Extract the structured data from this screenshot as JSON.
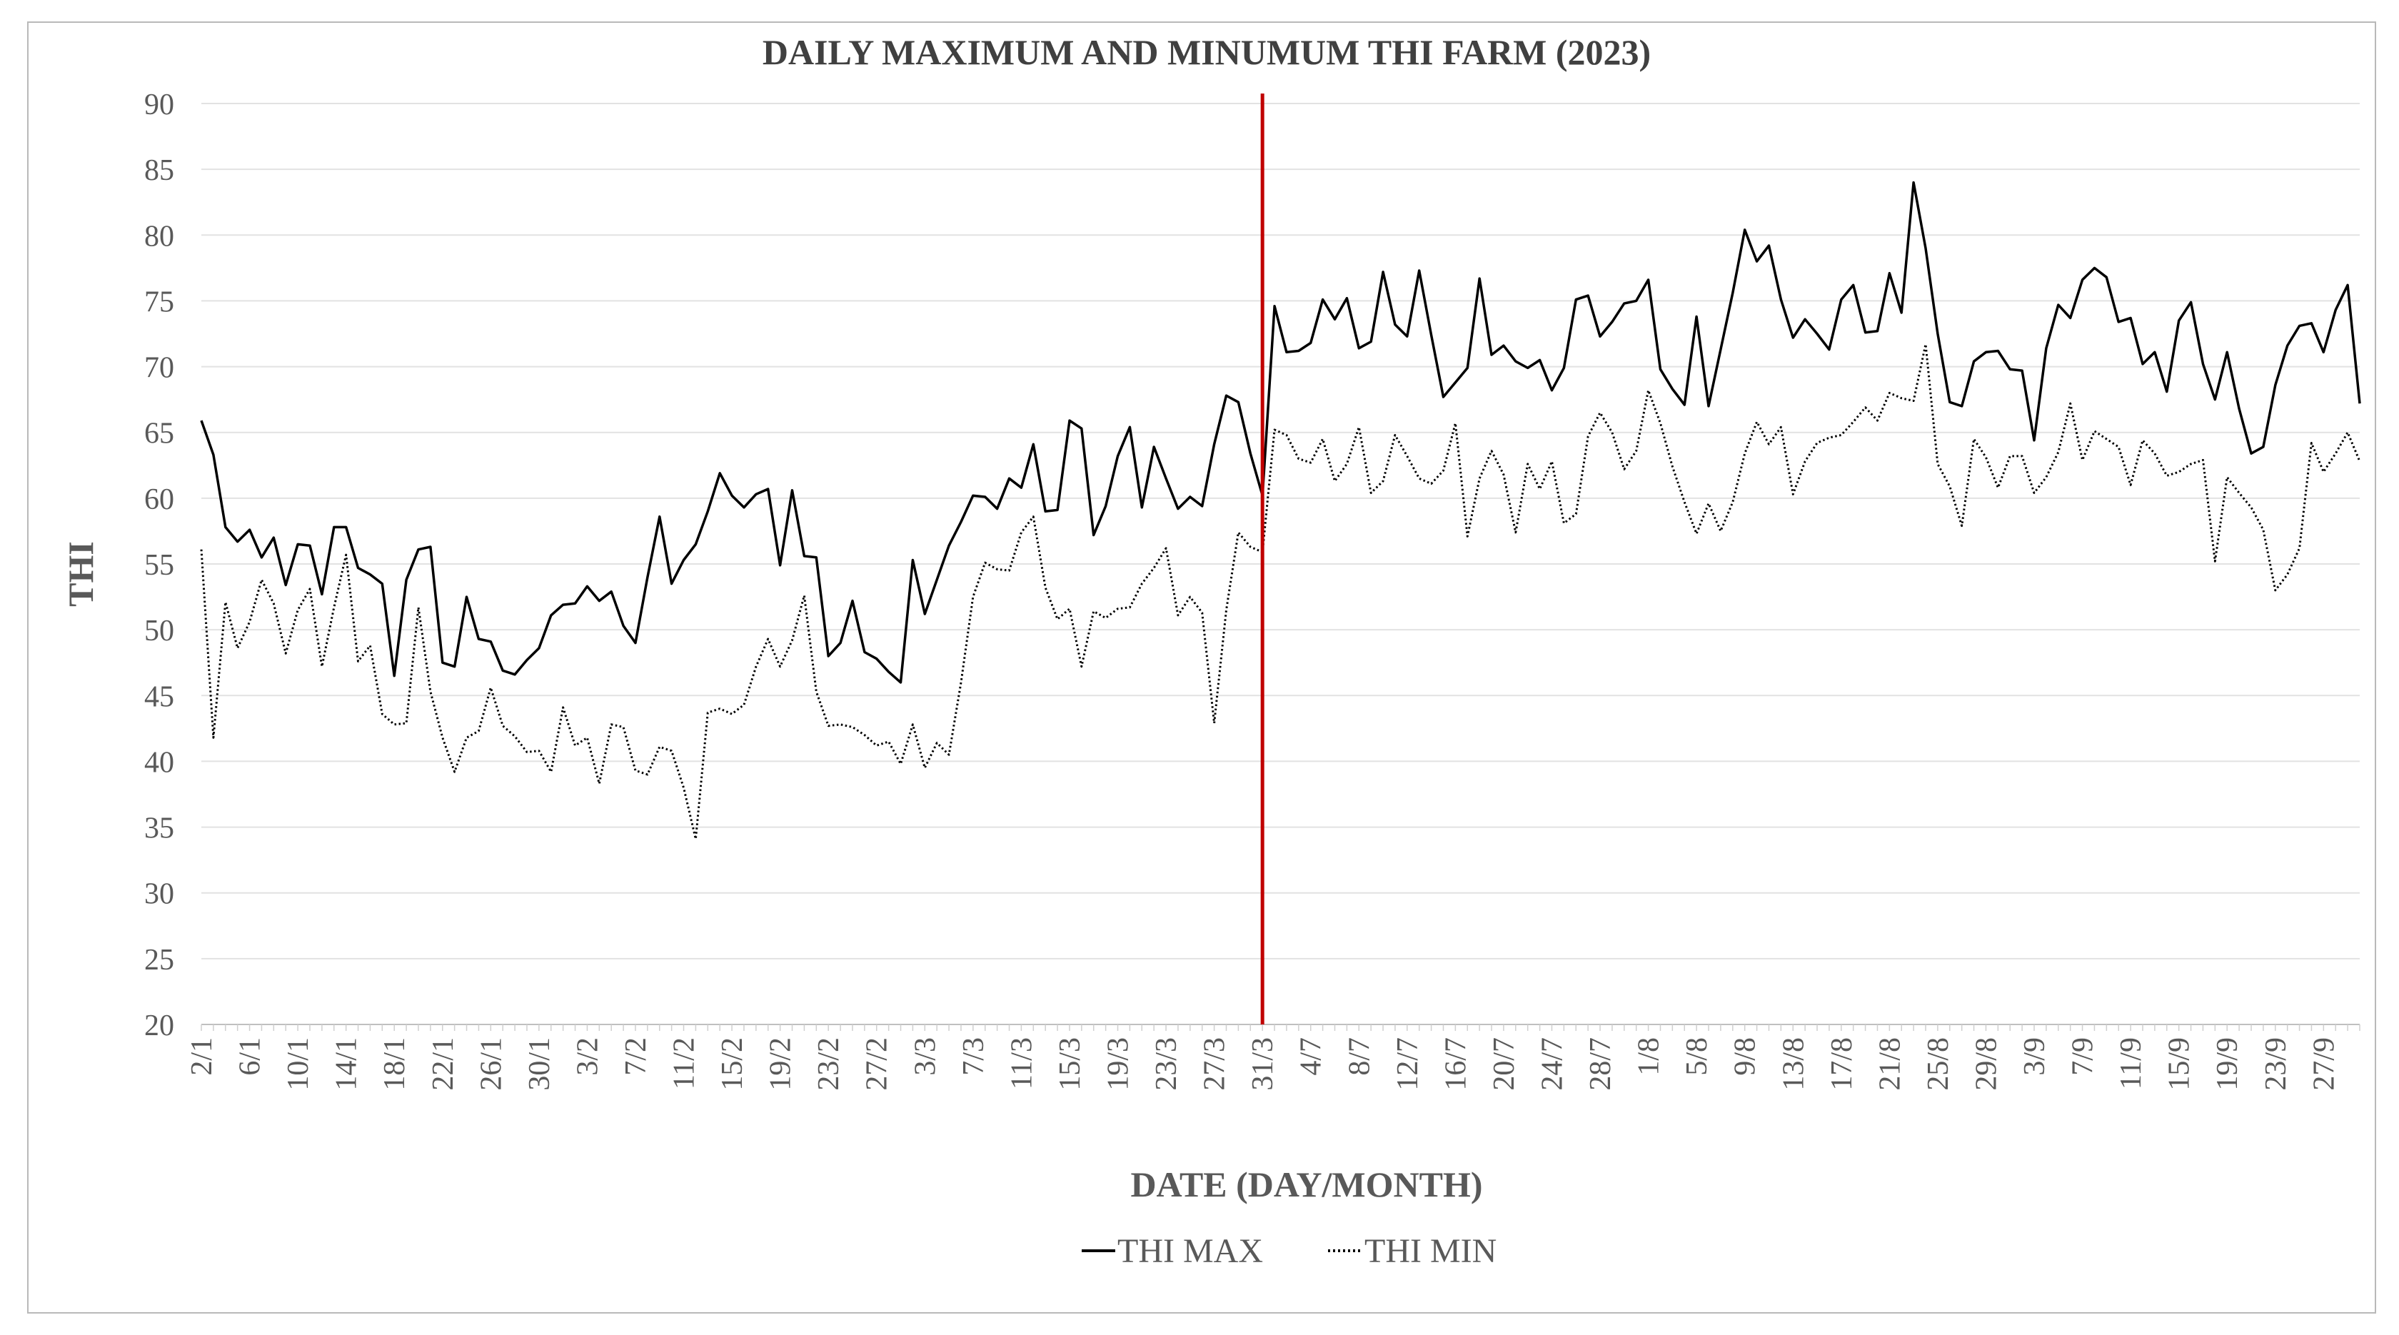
{
  "chart_data": {
    "type": "line",
    "title": "DAILY MAXIMUM AND MINUMUM THI FARM (2023)",
    "xlabel": "DATE (DAY/MONTH)",
    "ylabel": "THI",
    "ylim": [
      20,
      90
    ],
    "yticks": [
      20,
      25,
      30,
      35,
      40,
      45,
      50,
      55,
      60,
      65,
      70,
      75,
      80,
      85,
      90
    ],
    "grid": true,
    "legend_position": "bottom-center",
    "x_tick_labels": [
      "2/1",
      "6/1",
      "10/1",
      "14/1",
      "18/1",
      "22/1",
      "26/1",
      "30/1",
      "3/2",
      "7/2",
      "11/2",
      "15/2",
      "19/2",
      "23/2",
      "27/2",
      "3/3",
      "7/3",
      "11/3",
      "15/3",
      "19/3",
      "23/3",
      "27/3",
      "31/3",
      "4/7",
      "8/7",
      "12/7",
      "16/7",
      "20/7",
      "24/7",
      "28/7",
      "1/8",
      "5/8",
      "9/8",
      "13/8",
      "17/8",
      "21/8",
      "25/8",
      "29/8",
      "3/9",
      "7/9",
      "11/9",
      "15/9",
      "19/9",
      "23/9",
      "27/9"
    ],
    "annotation": {
      "type": "vertical-line",
      "at_label": "31/3",
      "color": "#c00000"
    },
    "series": [
      {
        "name": "THI MAX",
        "style": "solid",
        "color": "#000000",
        "values": [
          65.9,
          63.3,
          57.8,
          56.7,
          57.6,
          55.5,
          57.0,
          53.4,
          56.5,
          56.4,
          52.7,
          57.8,
          57.8,
          54.7,
          54.2,
          53.5,
          46.5,
          53.8,
          56.1,
          56.3,
          47.5,
          47.2,
          52.5,
          49.3,
          49.1,
          46.9,
          46.6,
          47.7,
          48.6,
          51.1,
          51.9,
          52.0,
          53.3,
          52.2,
          52.9,
          50.3,
          49.0,
          54.0,
          58.6,
          53.5,
          55.3,
          56.5,
          59.0,
          61.9,
          60.2,
          59.3,
          60.3,
          60.7,
          54.9,
          60.6,
          55.6,
          55.5,
          48.0,
          49.0,
          52.2,
          48.3,
          47.8,
          46.8,
          46.0,
          55.3,
          51.2,
          53.8,
          56.4,
          58.2,
          60.2,
          60.1,
          59.2,
          61.5,
          60.8,
          64.1,
          59.0,
          59.1,
          65.9,
          65.3,
          57.2,
          59.4,
          63.2,
          65.4,
          59.3,
          63.9,
          61.5,
          59.2,
          60.1,
          59.4,
          64.1,
          67.8,
          67.3,
          63.4,
          60.2,
          74.6,
          71.1,
          71.2,
          71.8,
          75.1,
          73.6,
          75.2,
          71.4,
          71.9,
          77.2,
          73.2,
          72.3,
          77.3,
          72.4,
          67.7,
          68.8,
          69.9,
          76.7,
          70.9,
          71.6,
          70.4,
          69.9,
          70.5,
          68.2,
          69.9,
          75.1,
          75.4,
          72.3,
          73.4,
          74.8,
          75.0,
          76.6,
          69.8,
          68.3,
          67.1,
          73.8,
          67.0,
          71.3,
          75.6,
          80.4,
          78.0,
          79.2,
          75.1,
          72.2,
          73.6,
          72.5,
          71.3,
          75.1,
          76.2,
          72.6,
          72.7,
          77.1,
          74.1,
          84.0,
          79.0,
          72.5,
          67.3,
          67.0,
          70.4,
          71.1,
          71.2,
          69.8,
          69.7,
          64.4,
          71.4,
          74.7,
          73.7,
          76.6,
          77.5,
          76.8,
          73.4,
          73.7,
          70.2,
          71.1,
          68.1,
          73.5,
          74.9,
          70.2,
          67.5,
          71.1,
          66.8,
          63.4,
          63.9,
          68.6,
          71.6,
          73.1,
          73.3,
          71.1,
          74.3,
          76.2,
          67.2
        ]
      },
      {
        "name": "THI MIN",
        "style": "dotted",
        "color": "#000000",
        "values": [
          56.1,
          41.8,
          52.1,
          48.6,
          50.6,
          53.8,
          52.0,
          48.2,
          51.5,
          53.1,
          47.2,
          51.7,
          55.7,
          47.6,
          48.8,
          43.6,
          42.8,
          42.9,
          51.7,
          45.3,
          41.8,
          39.2,
          41.8,
          42.3,
          45.6,
          42.7,
          41.9,
          40.7,
          40.8,
          39.2,
          44.1,
          41.2,
          41.8,
          38.3,
          42.8,
          42.6,
          39.3,
          39.0,
          41.1,
          40.8,
          38.0,
          34.1,
          43.7,
          44.0,
          43.6,
          44.3,
          47.2,
          49.3,
          47.2,
          49.2,
          52.6,
          45.3,
          42.7,
          42.8,
          42.6,
          42.0,
          41.2,
          41.5,
          39.8,
          42.8,
          39.5,
          41.4,
          40.5,
          46.0,
          52.5,
          55.1,
          54.6,
          54.5,
          57.4,
          58.6,
          53.2,
          50.8,
          51.6,
          47.2,
          51.4,
          50.9,
          51.6,
          51.7,
          53.5,
          54.7,
          56.2,
          51.1,
          52.5,
          51.3,
          42.9,
          51.5,
          57.4,
          56.3,
          55.9,
          65.2,
          64.8,
          63.0,
          62.7,
          64.5,
          61.3,
          62.6,
          65.4,
          60.4,
          61.3,
          64.8,
          63.2,
          61.5,
          61.1,
          62.1,
          65.7,
          57.1,
          61.5,
          63.6,
          61.8,
          57.4,
          62.6,
          60.7,
          62.8,
          58.1,
          58.8,
          64.7,
          66.5,
          65.0,
          62.2,
          63.6,
          68.2,
          65.7,
          62.4,
          59.7,
          57.3,
          59.6,
          57.5,
          59.7,
          63.4,
          65.8,
          64.1,
          65.4,
          60.3,
          62.8,
          64.2,
          64.6,
          64.8,
          65.8,
          66.9,
          65.9,
          68.0,
          67.6,
          67.4,
          71.7,
          62.6,
          60.9,
          57.9,
          64.5,
          63.1,
          60.8,
          63.2,
          63.2,
          60.4,
          61.6,
          63.5,
          67.2,
          62.9,
          65.1,
          64.5,
          63.9,
          61.0,
          64.4,
          63.4,
          61.7,
          62.0,
          62.6,
          62.9,
          55.2,
          61.6,
          60.4,
          59.3,
          57.6,
          53.0,
          54.2,
          56.2,
          64.2,
          62.0,
          63.4,
          65.0,
          62.8
        ]
      }
    ]
  }
}
